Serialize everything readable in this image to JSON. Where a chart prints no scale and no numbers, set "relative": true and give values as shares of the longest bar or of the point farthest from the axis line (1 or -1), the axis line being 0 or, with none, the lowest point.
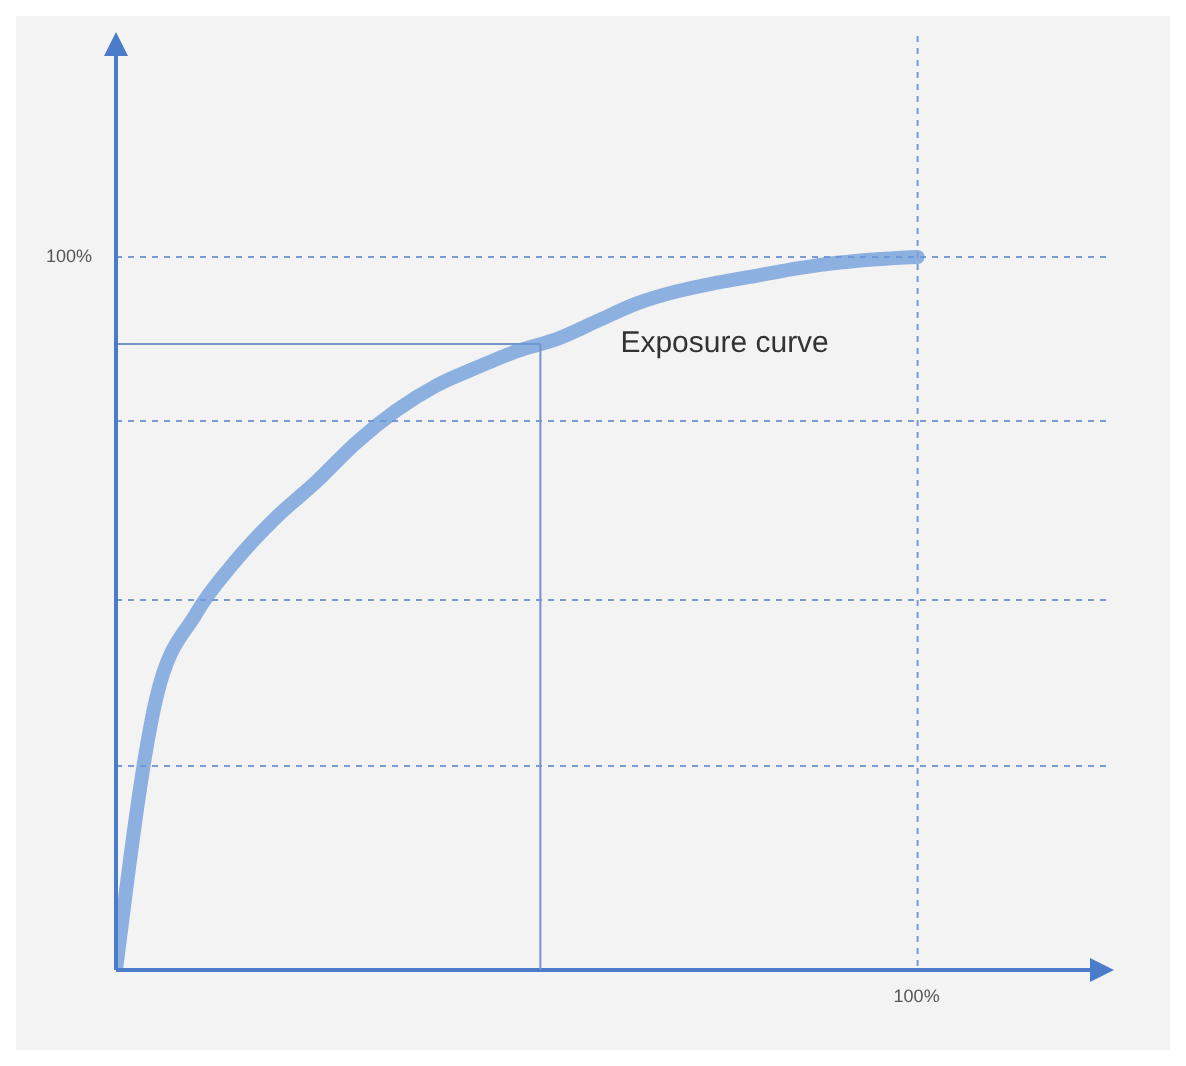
{
  "chart_data": {
    "type": "line",
    "relative": true,
    "categories": [
      null,
      null,
      null,
      null,
      null,
      null,
      null,
      null,
      null,
      null,
      null,
      null,
      null,
      null,
      null,
      null,
      null,
      null,
      null,
      null,
      null
    ],
    "series": [
      {
        "color": "#6a9ad8",
        "values": [
          0,
          0.38,
          0.5,
          0.575,
          0.635,
          0.685,
          0.74,
          0.785,
          0.82,
          0.845,
          0.868,
          0.885,
          0.91,
          0.935,
          0.952,
          0.964,
          0.974,
          0.984,
          0.992,
          0.997,
          1
        ]
      }
    ],
    "line_style": "solid",
    "ref_lines": [
      {
        "axis": "y",
        "value": 0.286,
        "color": "#7a9ad0",
        "line_style": "dashed"
      },
      {
        "axis": "y",
        "value": 0.519,
        "color": "#7a9ad0",
        "line_style": "dashed"
      },
      {
        "axis": "y",
        "value": 0.77,
        "color": "#7a9ad0",
        "line_style": "dashed"
      },
      {
        "axis": "y",
        "value": 1,
        "color": "#7a9ad0",
        "line_style": "dashed"
      },
      {
        "axis": "y",
        "value": 0.878,
        "color": "#7393c9",
        "line_style": "solid"
      }
    ],
    "annotations": [
      "Exposure curve",
      "100%",
      "100%"
    ]
  }
}
